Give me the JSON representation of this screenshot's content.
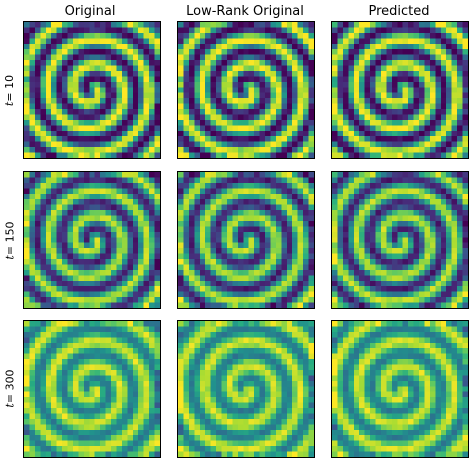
{
  "chart_data": {
    "type": "heatmap",
    "colormap": "viridis",
    "axes_ticks": "off",
    "grid_size": 25,
    "column_titles": [
      "Original",
      "Low-Rank Original",
      "Predicted"
    ],
    "rows": [
      {
        "t_symbol": "t",
        "t_eq": "= 10",
        "t": 10,
        "contrast": 1.0
      },
      {
        "t_symbol": "t",
        "t_eq": "= 150",
        "t": 150,
        "contrast": 0.85
      },
      {
        "t_symbol": "t",
        "t_eq": "= 300",
        "t": 300,
        "contrast": 0.55
      }
    ]
  }
}
